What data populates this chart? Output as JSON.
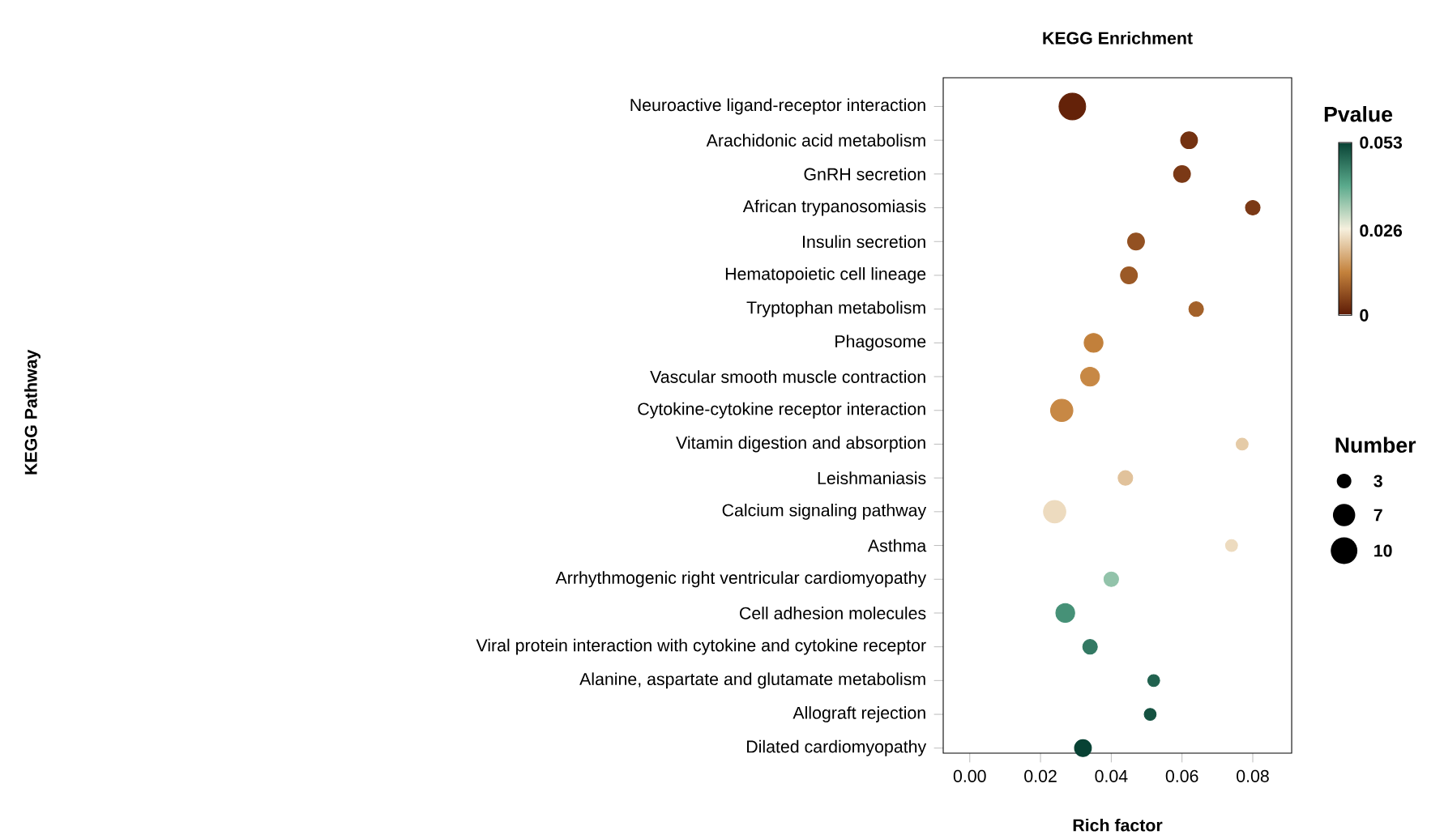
{
  "chart_data": {
    "type": "bubble",
    "title": "KEGG Enrichment",
    "xlabel": "Rich factor",
    "annotations": [
      "KEGG Pathway"
    ],
    "clabel": "Pvalue",
    "legend_title": "Number",
    "categories": [
      "Neuroactive ligand-receptor interaction",
      "Arachidonic acid metabolism",
      "GnRH secretion",
      "African trypanosomiasis",
      "Insulin secretion",
      "Hematopoietic cell lineage",
      "Tryptophan metabolism",
      "Phagosome",
      "Vascular smooth muscle contraction",
      "Cytokine-cytokine receptor interaction",
      "Vitamin digestion and absorption",
      "Leishmaniasis",
      "Calcium signaling pathway",
      "Asthma",
      "Arrhythmogenic right ventricular cardiomyopathy",
      "Cell adhesion molecules",
      "Viral protein interaction with cytokine and cytokine receptor",
      "Alanine, aspartate and glutamate metabolism",
      "Allograft rejection",
      "Dilated cardiomyopathy"
    ],
    "orientation": "horizontal",
    "values": [
      0.029,
      0.062,
      0.06,
      0.08,
      0.047,
      0.045,
      0.064,
      0.035,
      0.034,
      0.026,
      0.077,
      0.044,
      0.024,
      0.074,
      0.04,
      0.027,
      0.034,
      0.052,
      0.051,
      0.032
    ],
    "sizes": [
      10,
      4,
      4,
      3,
      4,
      4,
      3,
      5,
      5,
      7,
      2,
      3,
      7,
      2,
      3,
      5,
      3,
      2,
      2,
      4
    ],
    "cvalues": [
      0.001,
      0.003,
      0.004,
      0.004,
      0.007,
      0.008,
      0.009,
      0.013,
      0.014,
      0.014,
      0.022,
      0.021,
      0.024,
      0.024,
      0.035,
      0.043,
      0.046,
      0.049,
      0.051,
      0.053
    ],
    "size_legend": [
      3,
      7,
      10
    ],
    "xlim": [
      -0.0075,
      0.091
    ],
    "xticks": [
      {
        "value": 0,
        "label": "0.00"
      },
      {
        "value": 0.02,
        "label": "0.02"
      },
      {
        "value": 0.04,
        "label": "0.04"
      },
      {
        "value": 0.06,
        "label": "0.06"
      },
      {
        "value": 0.08,
        "label": "0.08"
      }
    ],
    "clim": [
      0,
      0.053
    ],
    "cticks": [
      0,
      0.026,
      0.053
    ],
    "marker": "circle"
  }
}
